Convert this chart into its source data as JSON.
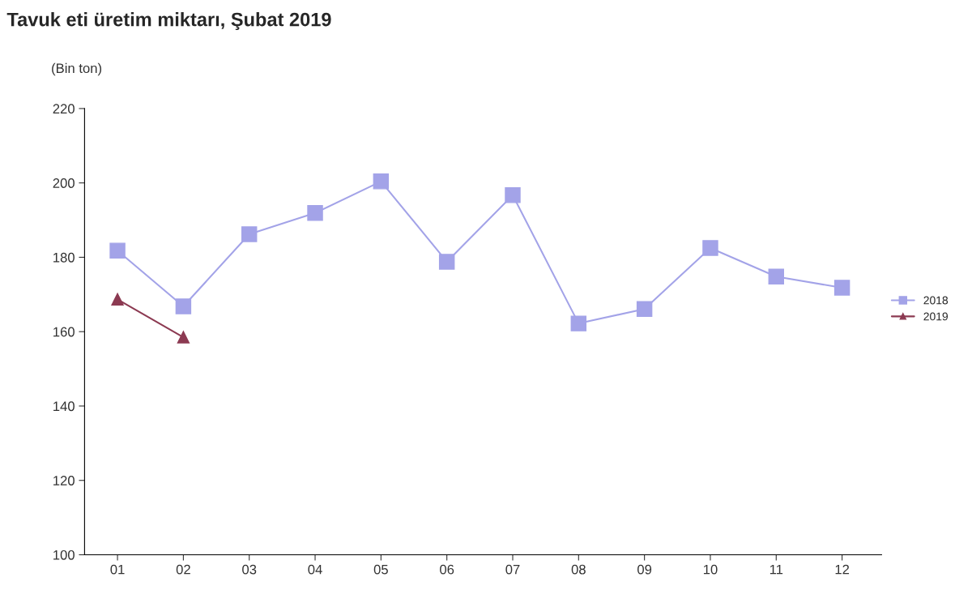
{
  "chart_data": {
    "type": "line",
    "title": "Tavuk eti üretim miktarı, Şubat 2019",
    "ylabel": "(Bin ton)",
    "categories": [
      "01",
      "02",
      "03",
      "04",
      "05",
      "06",
      "07",
      "08",
      "09",
      "10",
      "11",
      "12"
    ],
    "series": [
      {
        "name": "2018",
        "color": "#a3a3e8",
        "marker": "square",
        "values": [
          181.8,
          166.8,
          186.2,
          191.9,
          200.4,
          178.8,
          196.7,
          162.2,
          166.1,
          182.5,
          174.8,
          171.8
        ]
      },
      {
        "name": "2019",
        "color": "#8c3a52",
        "marker": "triangle",
        "values": [
          168.7,
          158.5,
          null,
          null,
          null,
          null,
          null,
          null,
          null,
          null,
          null,
          null
        ]
      }
    ],
    "ylim": [
      100,
      220
    ],
    "yticks": [
      100,
      120,
      140,
      160,
      180,
      200,
      220
    ],
    "grid": false,
    "legend": "right"
  }
}
